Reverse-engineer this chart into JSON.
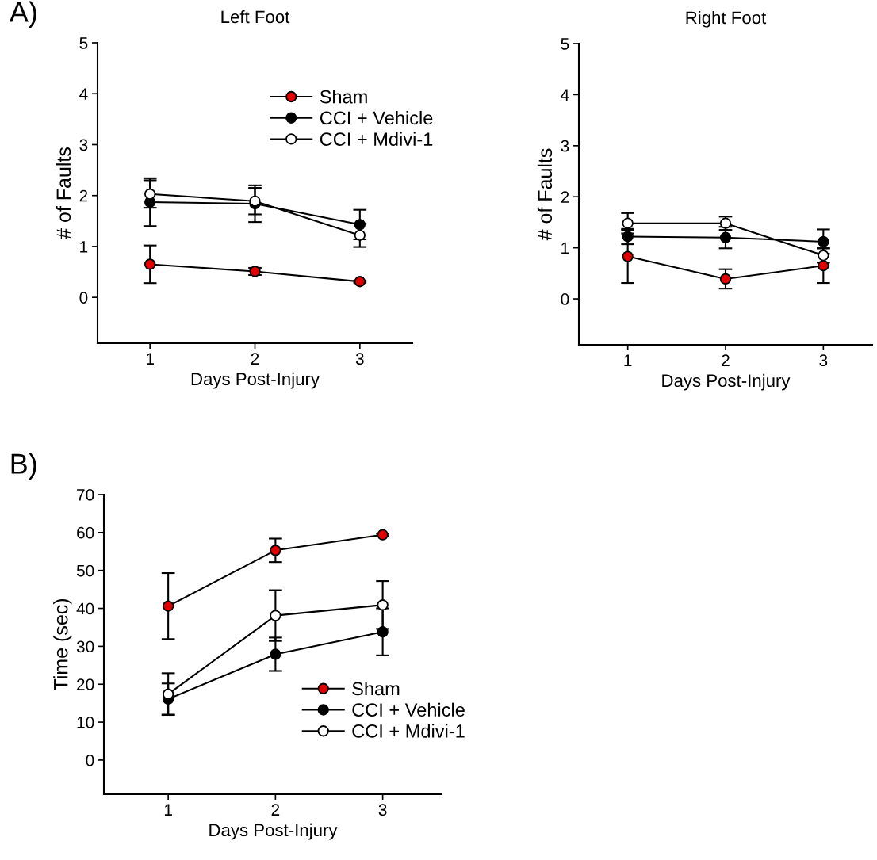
{
  "chart_data": [
    {
      "type": "line",
      "title": "Left Foot",
      "xlabel": "Days Post-Injury",
      "ylabel": "# of Faults",
      "annotations": [
        "A)"
      ],
      "x": [
        1,
        2,
        3
      ],
      "xlim": [
        0.5,
        3.5
      ],
      "xticks": [
        1,
        2,
        3
      ],
      "ylim": [
        -0.9,
        5
      ],
      "yticks": [
        0,
        1,
        2,
        3,
        4,
        5
      ],
      "grid": false,
      "legend": "top right",
      "marker": "circle",
      "line_style": "solid",
      "series": [
        {
          "name": "Sham",
          "color": "#e00000",
          "values": [
            0.65,
            0.51,
            0.31
          ],
          "errors": [
            0.37,
            0.07,
            0.02
          ]
        },
        {
          "name": "CCI + Vehicle",
          "color": "#000000",
          "values": [
            1.87,
            1.84,
            1.43
          ],
          "errors": [
            0.47,
            0.36,
            0.29
          ]
        },
        {
          "name": "CCI + Mdivi-1",
          "color": "#ffffff",
          "values": [
            2.03,
            1.89,
            1.22
          ],
          "errors": [
            0.27,
            0.26,
            0.23
          ]
        }
      ]
    },
    {
      "type": "line",
      "title": "Right Foot",
      "xlabel": "Days Post-Injury",
      "ylabel": "# of Faults",
      "x": [
        1,
        2,
        3
      ],
      "xlim": [
        0.5,
        3.5
      ],
      "xticks": [
        1,
        2,
        3
      ],
      "ylim": [
        -0.9,
        5
      ],
      "yticks": [
        0,
        1,
        2,
        3,
        4,
        5
      ],
      "grid": false,
      "legend": false,
      "marker": "circle",
      "line_style": "solid",
      "series": [
        {
          "color": "#e00000",
          "values": [
            0.83,
            0.39,
            0.65
          ],
          "errors": [
            0.52,
            0.19,
            0.34
          ]
        },
        {
          "color": "#000000",
          "values": [
            1.22,
            1.2,
            1.12
          ],
          "errors": [
            0.15,
            0.21,
            0.24
          ]
        },
        {
          "color": "#ffffff",
          "values": [
            1.48,
            1.48,
            0.85
          ],
          "errors": [
            0.2,
            0.13,
            0.14
          ]
        }
      ]
    },
    {
      "type": "line",
      "xlabel": "Days Post-Injury",
      "ylabel": "Time (sec)",
      "annotations": [
        "B)"
      ],
      "x": [
        1,
        2,
        3
      ],
      "xlim": [
        0.4,
        3.55
      ],
      "xticks": [
        1,
        2,
        3
      ],
      "ylim": [
        -9,
        70
      ],
      "yticks": [
        0,
        10,
        20,
        30,
        40,
        50,
        60,
        70
      ],
      "grid": false,
      "legend": "bottom right",
      "marker": "circle",
      "line_style": "solid",
      "series": [
        {
          "name": "Sham",
          "color": "#e00000",
          "values": [
            40.6,
            55.3,
            59.4
          ],
          "errors": [
            8.7,
            3.1,
            0.3
          ]
        },
        {
          "name": "CCI + Vehicle",
          "color": "#000000",
          "values": [
            16.1,
            27.9,
            33.8
          ],
          "errors": [
            4.1,
            4.4,
            6.2
          ]
        },
        {
          "name": "CCI + Mdivi-1",
          "color": "#ffffff",
          "values": [
            17.4,
            38.1,
            40.9
          ],
          "errors": [
            5.5,
            6.7,
            6.3
          ]
        }
      ]
    }
  ]
}
